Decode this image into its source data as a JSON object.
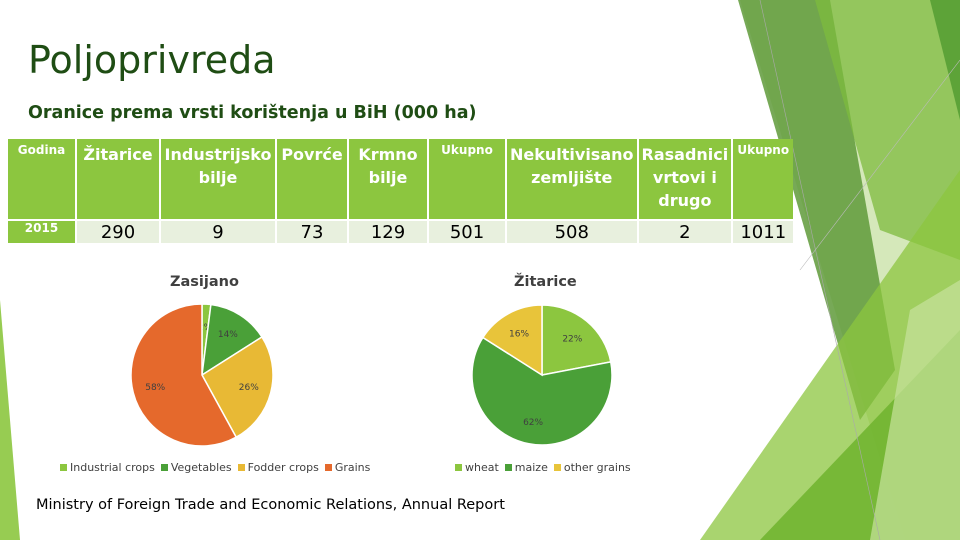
{
  "slide": {
    "title": "Poljoprivreda",
    "subtitle": "Oranice prema vrsti korištenja u BiH (000 ha)",
    "source": "Ministry of Foreign Trade and Economic  Relations, Annual Report"
  },
  "table": {
    "headers": [
      "Godina",
      "Žitarice",
      "Industrijsko bilje",
      "Povrće",
      "Krmno bilje",
      "Ukupno",
      "Nekultivisano zemljište",
      "Rasadnici vrtovi i drugo",
      "Ukupno"
    ],
    "row": [
      "2015",
      "290",
      "9",
      "73",
      "129",
      "501",
      "508",
      "2",
      "1011"
    ]
  },
  "chart_data": [
    {
      "type": "pie",
      "title": "Zasijano",
      "slices": [
        {
          "label": "Industrial crops",
          "value": 2,
          "display": "2%",
          "color": "#8cc63f"
        },
        {
          "label": "Vegetables",
          "value": 14,
          "display": "14%",
          "color": "#4aa038"
        },
        {
          "label": "Fodder crops",
          "value": 26,
          "display": "26%",
          "color": "#e8b935"
        },
        {
          "label": "Grains",
          "value": 58,
          "display": "58%",
          "color": "#e5692c"
        }
      ],
      "legend_position": "bottom"
    },
    {
      "type": "pie",
      "title": "Žitarice",
      "slices": [
        {
          "label": "wheat",
          "value": 22,
          "display": "22%",
          "color": "#8cc63f"
        },
        {
          "label": "maize",
          "value": 62,
          "display": "62%",
          "color": "#4aa038"
        },
        {
          "label": "other grains",
          "value": 16,
          "display": "16%",
          "color": "#e8c43a"
        }
      ],
      "legend_position": "bottom"
    }
  ]
}
